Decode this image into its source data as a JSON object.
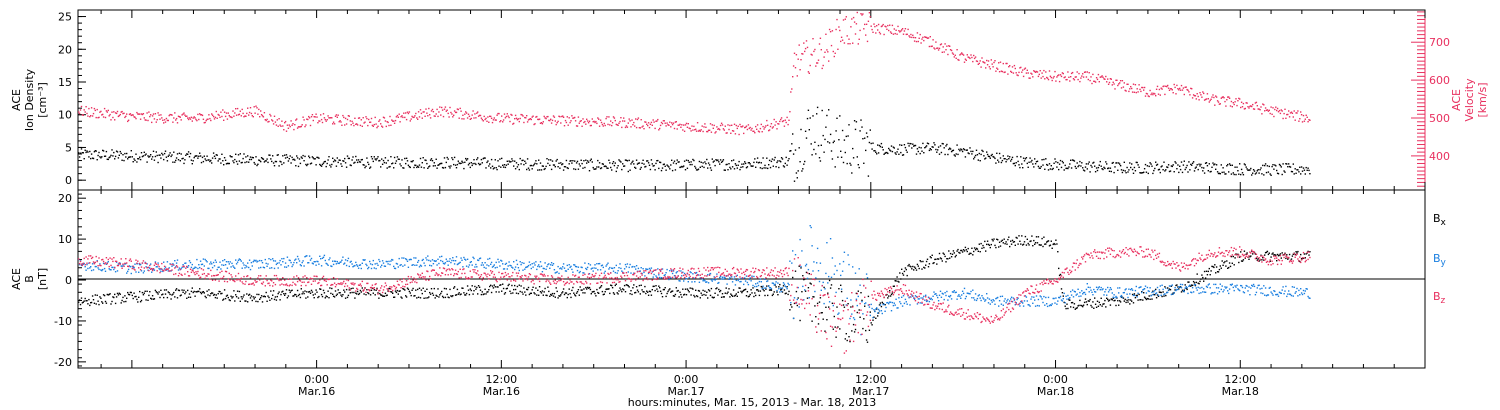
{
  "colors": {
    "density": "#000000",
    "velocity": "#e8305f",
    "bx": "#000000",
    "by": "#1a7fe0",
    "bz": "#e8305f",
    "axis": "#000000"
  },
  "xaxis": {
    "ticks": [
      {
        "time": "0:00",
        "date": "Mar.16",
        "hours": 24
      },
      {
        "time": "12:00",
        "date": "Mar.16",
        "hours": 36
      },
      {
        "time": "0:00",
        "date": "Mar.17",
        "hours": 48
      },
      {
        "time": "12:00",
        "date": "Mar.17",
        "hours": 60
      },
      {
        "time": "0:00",
        "date": "Mar.18",
        "hours": 72
      },
      {
        "time": "12:00",
        "date": "Mar.18",
        "hours": 84
      }
    ],
    "label": "hours:minutes, Mar. 15, 2013 - Mar. 18, 2013",
    "range_hours": [
      8.5,
      96
    ]
  },
  "chart_data": [
    {
      "type": "scatter",
      "panel": "top",
      "left_axis": {
        "label_lines": [
          "ACE",
          "Ion Density",
          "[cm⁻³]"
        ],
        "ticks": [
          "0",
          "5",
          "10",
          "15",
          "20",
          "25"
        ],
        "ylim": [
          -1.5,
          26
        ]
      },
      "right_axis": {
        "label_lines": [
          "ACE",
          "Velocity",
          "[km/s]"
        ],
        "ticks": [
          "400",
          "500",
          "600",
          "700"
        ],
        "ylim": [
          310,
          785
        ]
      },
      "series": [
        {
          "key": "density",
          "axis": "left",
          "x_hours": [
            8.5,
            12,
            16,
            20,
            24,
            28,
            32,
            36,
            40,
            44,
            48,
            52,
            54.7,
            56,
            57.5,
            58,
            60,
            62,
            64,
            66,
            68,
            70,
            72,
            74,
            76,
            78,
            80,
            82,
            84,
            86,
            88.5
          ],
          "values": [
            4.0,
            3.8,
            3.5,
            3.2,
            3.0,
            2.8,
            2.8,
            2.6,
            2.5,
            2.3,
            2.4,
            2.6,
            3.0,
            8.0,
            6.5,
            5.5,
            5.0,
            4.8,
            5.0,
            4.5,
            3.5,
            2.8,
            2.5,
            2.2,
            2.0,
            2.0,
            2.2,
            2.0,
            1.8,
            1.7,
            1.8
          ]
        },
        {
          "key": "velocity",
          "axis": "right",
          "x_hours": [
            8.5,
            12,
            16,
            20,
            22,
            24,
            28,
            32,
            36,
            40,
            44,
            48,
            52,
            54.7,
            55,
            57,
            58,
            60,
            62,
            64,
            66,
            68,
            70,
            72,
            74,
            76,
            78,
            80,
            82,
            84,
            86,
            88.5
          ],
          "values": [
            520,
            505,
            500,
            520,
            480,
            500,
            490,
            520,
            500,
            495,
            490,
            480,
            470,
            495,
            650,
            680,
            730,
            740,
            730,
            700,
            660,
            640,
            620,
            610,
            610,
            590,
            570,
            580,
            550,
            540,
            520,
            500
          ]
        }
      ]
    },
    {
      "type": "scatter",
      "panel": "bottom",
      "left_axis": {
        "label_lines": [
          "ACE",
          "B",
          "[nT]"
        ],
        "ticks": [
          "20",
          "10",
          "0",
          "-10",
          "-20"
        ],
        "ylim": [
          -21.5,
          22
        ]
      },
      "legend": {
        "position": "right",
        "entries": [
          {
            "label": "B",
            "sub": "x",
            "key": "bx"
          },
          {
            "label": "B",
            "sub": "y",
            "key": "by"
          },
          {
            "label": "B",
            "sub": "z",
            "key": "bz"
          }
        ]
      },
      "series": [
        {
          "key": "bx",
          "x_hours": [
            8.5,
            12,
            16,
            20,
            24,
            28,
            32,
            36,
            40,
            44,
            48,
            52,
            54.7,
            56,
            58,
            60,
            62,
            64,
            66,
            68,
            70,
            72,
            72.5,
            76,
            80,
            84,
            88.5
          ],
          "values": [
            -5,
            -4,
            -3,
            -4,
            -3,
            -3,
            -3,
            -2,
            -3,
            -2,
            -3,
            -3,
            -2,
            -5,
            -8,
            -10,
            2,
            5,
            7,
            9,
            10,
            9,
            -6,
            -5,
            -2,
            6,
            6
          ]
        },
        {
          "key": "by",
          "x_hours": [
            8.5,
            12,
            16,
            20,
            24,
            28,
            32,
            36,
            40,
            44,
            48,
            52,
            54.7,
            56,
            58,
            60,
            62,
            64,
            66,
            68,
            70,
            72,
            74,
            76,
            80,
            84,
            88.5
          ],
          "values": [
            4,
            3,
            4,
            4,
            5,
            4,
            5,
            4,
            3,
            3,
            1,
            0,
            -2,
            5,
            0,
            -8,
            -5,
            -4,
            -3,
            -5,
            -5,
            -5,
            -2,
            -3,
            -2,
            -2,
            -3
          ]
        },
        {
          "key": "bz",
          "x_hours": [
            8.5,
            12,
            16,
            20,
            24,
            28,
            32,
            36,
            40,
            44,
            48,
            52,
            54.7,
            56,
            58,
            60,
            62,
            64,
            66,
            68,
            70,
            72,
            74,
            76,
            78,
            80,
            82,
            84,
            86,
            88.5
          ],
          "values": [
            5,
            4,
            2,
            0,
            0,
            -2,
            2,
            1,
            0,
            1,
            2,
            2,
            2,
            -5,
            -12,
            -4,
            -2,
            -6,
            -8,
            -10,
            -3,
            0,
            6,
            7,
            7,
            3,
            7,
            7,
            5,
            6
          ]
        }
      ]
    }
  ]
}
